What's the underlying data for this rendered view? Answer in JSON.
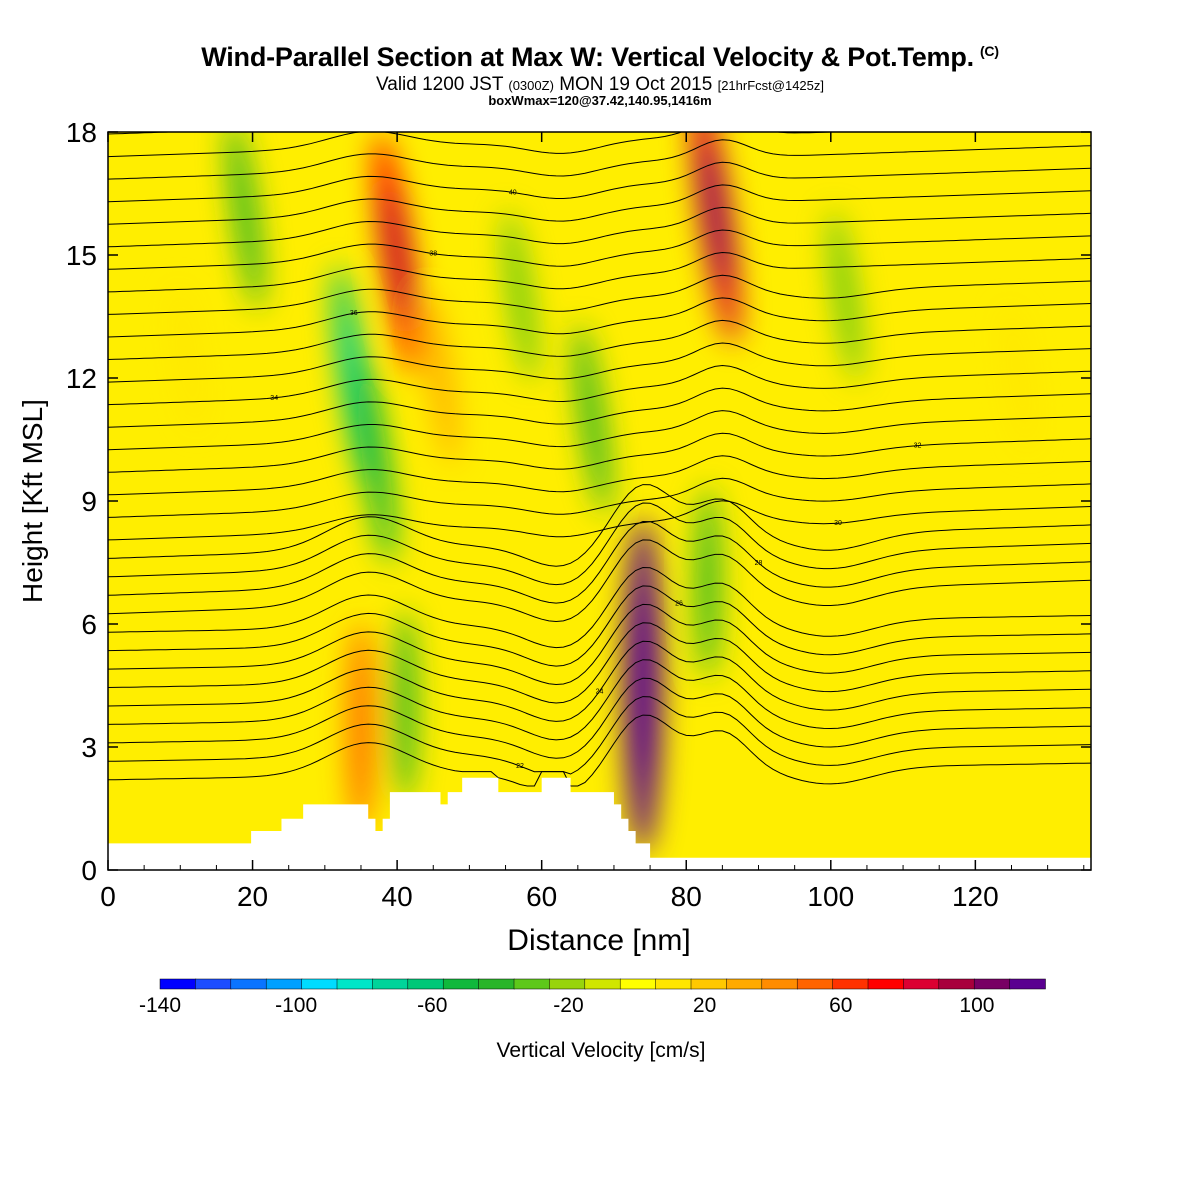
{
  "titles": {
    "main": "Wind-Parallel Section at Max W: Vertical Velocity & Pot.Temp.",
    "copyright": "(C)",
    "valid_prefix": "Valid 1200 JST",
    "valid_zulu": "(0300Z)",
    "valid_date": "MON 19 Oct 2015",
    "forecast": "[21hrFcst@1425z]",
    "box": "boxWmax=120@37.42,140.95,1416m"
  },
  "colorbar": {
    "label": "Vertical Velocity [cm/s]",
    "tick_labels": [
      "-140",
      "-100",
      "-60",
      "-20",
      "20",
      "60",
      "100"
    ],
    "colors": [
      "#0000ff",
      "#1c4dff",
      "#0a74ff",
      "#00a0ff",
      "#00dcff",
      "#00e6c8",
      "#00d49a",
      "#00c878",
      "#10b83c",
      "#2ab52a",
      "#5ec81a",
      "#98d40c",
      "#d0e600",
      "#ffff00",
      "#ffe600",
      "#ffc800",
      "#ffaa00",
      "#ff8c00",
      "#ff6400",
      "#ff3200",
      "#ff0000",
      "#dc0032",
      "#a8003c",
      "#780064",
      "#5a0090"
    ]
  },
  "chart_data": {
    "type": "heatmap",
    "title": "Wind-Parallel Section at Max W: Vertical Velocity & Pot.Temp.",
    "xlabel": "Distance [nm]",
    "ylabel": "Height [Kft MSL]",
    "xlim": [
      0,
      136
    ],
    "ylim": [
      0,
      18
    ],
    "x_ticks": [
      "0",
      "20",
      "40",
      "60",
      "80",
      "100",
      "120"
    ],
    "y_ticks": [
      "0",
      "3",
      "6",
      "9",
      "12",
      "15",
      "18"
    ],
    "colorbar_range": [
      -140,
      120
    ],
    "colorbar_units": "cm/s",
    "terrain_profile": [
      [
        0,
        0.65
      ],
      [
        19.8,
        0.65
      ],
      [
        19.8,
        0.95
      ],
      [
        24,
        0.95
      ],
      [
        24,
        1.25
      ],
      [
        27,
        1.25
      ],
      [
        27,
        1.6
      ],
      [
        36,
        1.6
      ],
      [
        36,
        1.25
      ],
      [
        37,
        1.25
      ],
      [
        37,
        0.95
      ],
      [
        38,
        0.95
      ],
      [
        38,
        1.25
      ],
      [
        39,
        1.25
      ],
      [
        39,
        1.9
      ],
      [
        46,
        1.9
      ],
      [
        46,
        1.6
      ],
      [
        47,
        1.6
      ],
      [
        47,
        1.9
      ],
      [
        49,
        1.9
      ],
      [
        49,
        2.25
      ],
      [
        54,
        2.25
      ],
      [
        54,
        1.9
      ],
      [
        60,
        1.9
      ],
      [
        60,
        2.25
      ],
      [
        64,
        2.25
      ],
      [
        64,
        1.9
      ],
      [
        70,
        1.9
      ],
      [
        70,
        1.6
      ],
      [
        71,
        1.6
      ],
      [
        71,
        1.25
      ],
      [
        72,
        1.25
      ],
      [
        72,
        0.95
      ],
      [
        73,
        0.95
      ],
      [
        73,
        0.65
      ],
      [
        75,
        0.65
      ],
      [
        75,
        0.3
      ],
      [
        136,
        0.3
      ]
    ],
    "vertical_velocity_features": [
      {
        "x": 11,
        "z": 12.5,
        "w": 15
      },
      {
        "x": 19,
        "z": 16,
        "w": -40
      },
      {
        "x": 34,
        "z": 12,
        "w": -60
      },
      {
        "x": 37,
        "z": 10,
        "w": -50
      },
      {
        "x": 40,
        "z": 15,
        "w": 70
      },
      {
        "x": 41,
        "z": 4,
        "w": -40
      },
      {
        "x": 35,
        "z": 3.5,
        "w": 50
      },
      {
        "x": 46,
        "z": 12,
        "w": 30
      },
      {
        "x": 57,
        "z": 14,
        "w": -30
      },
      {
        "x": 67,
        "z": 11,
        "w": -40
      },
      {
        "x": 74,
        "z": 4.5,
        "w": 120
      },
      {
        "x": 84,
        "z": 16,
        "w": 80
      },
      {
        "x": 83,
        "z": 7,
        "w": -40
      },
      {
        "x": 102,
        "z": 14,
        "w": -30
      },
      {
        "x": 126,
        "z": 12,
        "w": 15
      }
    ],
    "potential_temperature_contours": {
      "units": "C",
      "visible_labels": [
        "48",
        "40",
        "38",
        "36",
        "34",
        "32",
        "30",
        "28",
        "26",
        "24",
        "22",
        "20",
        "18"
      ]
    }
  }
}
